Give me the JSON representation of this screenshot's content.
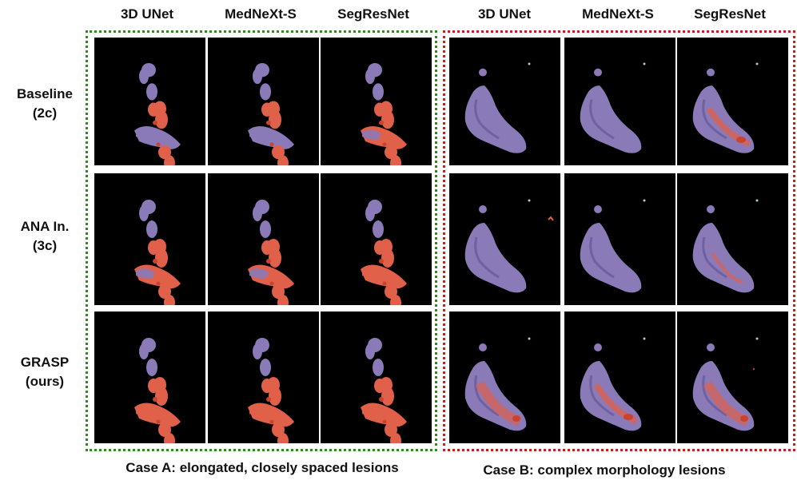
{
  "figure": {
    "column_headers": [
      "3D UNet",
      "MedNeXt-S",
      "SegResNet",
      "3D UNet",
      "MedNeXt-S",
      "SegResNet"
    ],
    "row_labels": [
      {
        "line1": "Baseline",
        "line2": "(2c)"
      },
      {
        "line1": "ANA In.",
        "line2": "(3c)"
      },
      {
        "line1": "GRASP",
        "line2": "(ours)"
      }
    ],
    "captions": {
      "case_a": "Case A: elongated, closely spaced lesions",
      "case_b": "Case B: complex morphology lesions"
    },
    "colors": {
      "case_a_border": "#2e8b1e",
      "case_b_border": "#c81e1e",
      "organ_purple": "#8a7ab8",
      "lesion_red": "#e0604a",
      "panel_bg": "#000000"
    }
  }
}
